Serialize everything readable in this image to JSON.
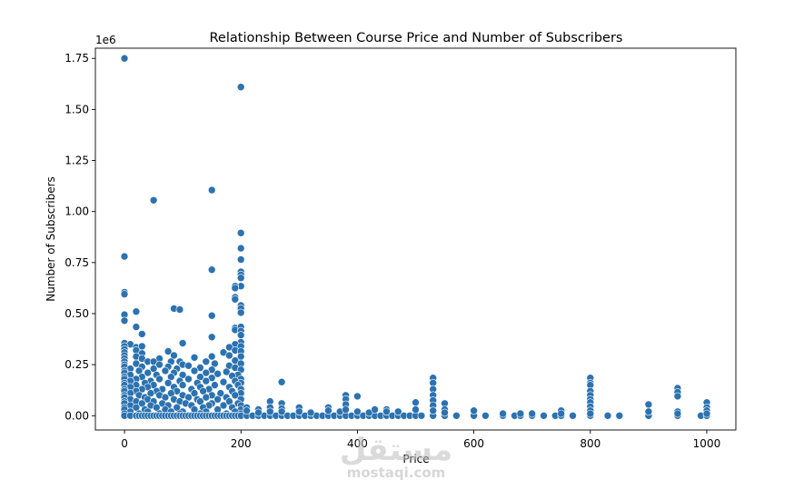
{
  "chart_data": {
    "type": "scatter",
    "title": "Relationship Between Course Price and Number of Subscribers",
    "xlabel": "Price",
    "ylabel": "Number of Subscribers",
    "y_offset_label": "1e6",
    "xlim": [
      -50,
      1050
    ],
    "ylim": [
      -0.07,
      1.8
    ],
    "x_ticks": [
      0,
      200,
      400,
      600,
      800,
      1000
    ],
    "y_ticks": [
      0.0,
      0.25,
      0.5,
      0.75,
      1.0,
      1.25,
      1.5,
      1.75
    ],
    "y_tick_labels": [
      "0.00",
      "0.25",
      "0.50",
      "0.75",
      "1.00",
      "1.25",
      "1.50",
      "1.75"
    ],
    "grid": false,
    "point_color": "#2c72b0",
    "point_edge": "#ffffff",
    "points": [
      [
        0,
        1.75
      ],
      [
        200,
        1.61
      ],
      [
        150,
        1.105
      ],
      [
        50,
        1.055
      ],
      [
        0,
        0.78
      ],
      [
        200,
        0.895
      ],
      [
        200,
        0.82
      ],
      [
        200,
        0.765
      ],
      [
        150,
        0.715
      ],
      [
        200,
        0.705
      ],
      [
        200,
        0.69
      ],
      [
        200,
        0.675
      ],
      [
        200,
        0.635
      ],
      [
        190,
        0.635
      ],
      [
        190,
        0.625
      ],
      [
        0,
        0.605
      ],
      [
        0,
        0.595
      ],
      [
        190,
        0.58
      ],
      [
        190,
        0.57
      ],
      [
        200,
        0.54
      ],
      [
        200,
        0.525
      ],
      [
        200,
        0.505
      ],
      [
        85,
        0.525
      ],
      [
        95,
        0.52
      ],
      [
        20,
        0.51
      ],
      [
        0,
        0.495
      ],
      [
        150,
        0.49
      ],
      [
        0,
        0.465
      ],
      [
        20,
        0.435
      ],
      [
        190,
        0.43
      ],
      [
        190,
        0.42
      ],
      [
        200,
        0.435
      ],
      [
        200,
        0.415
      ],
      [
        200,
        0.395
      ],
      [
        30,
        0.4
      ],
      [
        150,
        0.385
      ],
      [
        200,
        0.36
      ],
      [
        0,
        0.355
      ],
      [
        10,
        0.35
      ],
      [
        100,
        0.355
      ],
      [
        190,
        0.35
      ],
      [
        0,
        0.34
      ],
      [
        20,
        0.335
      ],
      [
        30,
        0.34
      ],
      [
        180,
        0.335
      ],
      [
        200,
        0.34
      ],
      [
        0,
        0.325
      ],
      [
        20,
        0.32
      ],
      [
        75,
        0.315
      ],
      [
        190,
        0.32
      ],
      [
        0,
        0.31
      ],
      [
        30,
        0.305
      ],
      [
        170,
        0.31
      ],
      [
        200,
        0.315
      ],
      [
        0,
        0.295
      ],
      [
        20,
        0.29
      ],
      [
        85,
        0.295
      ],
      [
        150,
        0.29
      ],
      [
        180,
        0.295
      ],
      [
        0,
        0.28
      ],
      [
        30,
        0.28
      ],
      [
        60,
        0.28
      ],
      [
        120,
        0.285
      ],
      [
        200,
        0.29
      ],
      [
        0,
        0.265
      ],
      [
        40,
        0.265
      ],
      [
        50,
        0.265
      ],
      [
        80,
        0.265
      ],
      [
        95,
        0.265
      ],
      [
        140,
        0.265
      ],
      [
        190,
        0.27
      ],
      [
        0,
        0.25
      ],
      [
        20,
        0.255
      ],
      [
        60,
        0.25
      ],
      [
        100,
        0.25
      ],
      [
        155,
        0.255
      ],
      [
        200,
        0.255
      ],
      [
        0,
        0.24
      ],
      [
        30,
        0.24
      ],
      [
        75,
        0.24
      ],
      [
        110,
        0.245
      ],
      [
        180,
        0.245
      ],
      [
        10,
        0.23
      ],
      [
        50,
        0.23
      ],
      [
        90,
        0.23
      ],
      [
        130,
        0.235
      ],
      [
        190,
        0.235
      ],
      [
        0,
        0.22
      ],
      [
        25,
        0.22
      ],
      [
        70,
        0.22
      ],
      [
        120,
        0.22
      ],
      [
        150,
        0.225
      ],
      [
        200,
        0.225
      ],
      [
        0,
        0.21
      ],
      [
        40,
        0.21
      ],
      [
        85,
        0.21
      ],
      [
        140,
        0.21
      ],
      [
        175,
        0.215
      ],
      [
        10,
        0.2
      ],
      [
        55,
        0.2
      ],
      [
        100,
        0.2
      ],
      [
        160,
        0.205
      ],
      [
        195,
        0.2
      ],
      [
        0,
        0.19
      ],
      [
        30,
        0.19
      ],
      [
        80,
        0.19
      ],
      [
        130,
        0.19
      ],
      [
        185,
        0.195
      ],
      [
        0,
        0.18
      ],
      [
        20,
        0.18
      ],
      [
        60,
        0.18
      ],
      [
        110,
        0.18
      ],
      [
        150,
        0.185
      ],
      [
        200,
        0.18
      ],
      [
        10,
        0.17
      ],
      [
        45,
        0.17
      ],
      [
        95,
        0.17
      ],
      [
        140,
        0.17
      ],
      [
        190,
        0.17
      ],
      [
        0,
        0.16
      ],
      [
        35,
        0.16
      ],
      [
        75,
        0.16
      ],
      [
        125,
        0.16
      ],
      [
        170,
        0.165
      ],
      [
        200,
        0.16
      ],
      [
        0,
        0.15
      ],
      [
        20,
        0.15
      ],
      [
        50,
        0.15
      ],
      [
        100,
        0.15
      ],
      [
        155,
        0.15
      ],
      [
        195,
        0.15
      ],
      [
        10,
        0.14
      ],
      [
        40,
        0.14
      ],
      [
        85,
        0.14
      ],
      [
        130,
        0.14
      ],
      [
        180,
        0.14
      ],
      [
        0,
        0.13
      ],
      [
        30,
        0.13
      ],
      [
        65,
        0.13
      ],
      [
        115,
        0.13
      ],
      [
        145,
        0.13
      ],
      [
        200,
        0.13
      ],
      [
        0,
        0.12
      ],
      [
        20,
        0.12
      ],
      [
        55,
        0.12
      ],
      [
        90,
        0.12
      ],
      [
        135,
        0.12
      ],
      [
        185,
        0.12
      ],
      [
        10,
        0.11
      ],
      [
        45,
        0.11
      ],
      [
        80,
        0.11
      ],
      [
        120,
        0.11
      ],
      [
        165,
        0.11
      ],
      [
        200,
        0.11
      ],
      [
        0,
        0.1
      ],
      [
        25,
        0.1
      ],
      [
        60,
        0.1
      ],
      [
        100,
        0.1
      ],
      [
        150,
        0.1
      ],
      [
        190,
        0.1
      ],
      [
        0,
        0.09
      ],
      [
        35,
        0.09
      ],
      [
        70,
        0.09
      ],
      [
        110,
        0.09
      ],
      [
        140,
        0.09
      ],
      [
        175,
        0.09
      ],
      [
        10,
        0.08
      ],
      [
        40,
        0.08
      ],
      [
        85,
        0.08
      ],
      [
        125,
        0.08
      ],
      [
        160,
        0.08
      ],
      [
        200,
        0.08
      ],
      [
        0,
        0.07
      ],
      [
        20,
        0.07
      ],
      [
        50,
        0.07
      ],
      [
        95,
        0.07
      ],
      [
        130,
        0.07
      ],
      [
        180,
        0.07
      ],
      [
        0,
        0.06
      ],
      [
        30,
        0.06
      ],
      [
        65,
        0.06
      ],
      [
        105,
        0.06
      ],
      [
        150,
        0.06
      ],
      [
        195,
        0.06
      ],
      [
        10,
        0.05
      ],
      [
        45,
        0.05
      ],
      [
        75,
        0.05
      ],
      [
        115,
        0.05
      ],
      [
        145,
        0.05
      ],
      [
        170,
        0.05
      ],
      [
        200,
        0.05
      ],
      [
        0,
        0.04
      ],
      [
        20,
        0.04
      ],
      [
        55,
        0.04
      ],
      [
        90,
        0.04
      ],
      [
        135,
        0.04
      ],
      [
        185,
        0.04
      ],
      [
        0,
        0.03
      ],
      [
        35,
        0.03
      ],
      [
        70,
        0.03
      ],
      [
        120,
        0.03
      ],
      [
        160,
        0.03
      ],
      [
        200,
        0.03
      ],
      [
        10,
        0.02
      ],
      [
        40,
        0.02
      ],
      [
        80,
        0.02
      ],
      [
        100,
        0.02
      ],
      [
        140,
        0.02
      ],
      [
        190,
        0.02
      ],
      [
        0,
        0.01
      ],
      [
        25,
        0.01
      ],
      [
        60,
        0.01
      ],
      [
        95,
        0.01
      ],
      [
        130,
        0.01
      ],
      [
        175,
        0.01
      ],
      [
        200,
        0.01
      ],
      [
        0,
        0
      ],
      [
        10,
        0
      ],
      [
        20,
        0
      ],
      [
        25,
        0
      ],
      [
        30,
        0
      ],
      [
        35,
        0
      ],
      [
        40,
        0
      ],
      [
        45,
        0
      ],
      [
        50,
        0
      ],
      [
        55,
        0
      ],
      [
        60,
        0
      ],
      [
        65,
        0
      ],
      [
        70,
        0
      ],
      [
        75,
        0
      ],
      [
        80,
        0
      ],
      [
        85,
        0
      ],
      [
        90,
        0
      ],
      [
        95,
        0
      ],
      [
        100,
        0
      ],
      [
        105,
        0
      ],
      [
        110,
        0
      ],
      [
        115,
        0
      ],
      [
        120,
        0
      ],
      [
        125,
        0
      ],
      [
        130,
        0
      ],
      [
        135,
        0
      ],
      [
        140,
        0
      ],
      [
        145,
        0
      ],
      [
        150,
        0
      ],
      [
        155,
        0
      ],
      [
        160,
        0
      ],
      [
        165,
        0
      ],
      [
        170,
        0
      ],
      [
        175,
        0
      ],
      [
        180,
        0
      ],
      [
        185,
        0
      ],
      [
        190,
        0
      ],
      [
        195,
        0
      ],
      [
        200,
        0
      ],
      [
        210,
        0
      ],
      [
        220,
        0
      ],
      [
        230,
        0
      ],
      [
        240,
        0
      ],
      [
        250,
        0
      ],
      [
        260,
        0
      ],
      [
        270,
        0
      ],
      [
        280,
        0
      ],
      [
        290,
        0
      ],
      [
        300,
        0
      ],
      [
        310,
        0
      ],
      [
        320,
        0
      ],
      [
        330,
        0
      ],
      [
        340,
        0
      ],
      [
        350,
        0
      ],
      [
        360,
        0
      ],
      [
        370,
        0
      ],
      [
        380,
        0
      ],
      [
        390,
        0
      ],
      [
        400,
        0
      ],
      [
        410,
        0
      ],
      [
        420,
        0
      ],
      [
        430,
        0
      ],
      [
        440,
        0
      ],
      [
        450,
        0
      ],
      [
        460,
        0
      ],
      [
        470,
        0
      ],
      [
        480,
        0
      ],
      [
        490,
        0
      ],
      [
        500,
        0
      ],
      [
        510,
        0
      ],
      [
        530,
        0
      ],
      [
        550,
        0
      ],
      [
        570,
        0
      ],
      [
        600,
        0
      ],
      [
        620,
        0
      ],
      [
        650,
        0
      ],
      [
        670,
        0
      ],
      [
        680,
        0
      ],
      [
        700,
        0
      ],
      [
        720,
        0
      ],
      [
        740,
        0
      ],
      [
        750,
        0
      ],
      [
        770,
        0
      ],
      [
        800,
        0
      ],
      [
        830,
        0
      ],
      [
        850,
        0
      ],
      [
        900,
        0
      ],
      [
        950,
        0
      ],
      [
        990,
        0
      ],
      [
        1000,
        0
      ],
      [
        210,
        0.04
      ],
      [
        210,
        0.025
      ],
      [
        230,
        0.03
      ],
      [
        230,
        0.015
      ],
      [
        250,
        0.07
      ],
      [
        250,
        0.04
      ],
      [
        250,
        0.02
      ],
      [
        270,
        0.165
      ],
      [
        270,
        0.06
      ],
      [
        270,
        0.035
      ],
      [
        270,
        0.02
      ],
      [
        300,
        0.04
      ],
      [
        300,
        0.02
      ],
      [
        320,
        0.015
      ],
      [
        350,
        0.04
      ],
      [
        350,
        0.025
      ],
      [
        370,
        0.02
      ],
      [
        380,
        0.1
      ],
      [
        380,
        0.08
      ],
      [
        380,
        0.055
      ],
      [
        380,
        0.03
      ],
      [
        400,
        0.095
      ],
      [
        400,
        0.02
      ],
      [
        420,
        0.015
      ],
      [
        430,
        0.03
      ],
      [
        450,
        0.03
      ],
      [
        450,
        0.02
      ],
      [
        470,
        0.02
      ],
      [
        500,
        0.065
      ],
      [
        500,
        0.03
      ],
      [
        530,
        0.185
      ],
      [
        530,
        0.16
      ],
      [
        530,
        0.13
      ],
      [
        530,
        0.1
      ],
      [
        530,
        0.075
      ],
      [
        530,
        0.05
      ],
      [
        530,
        0.025
      ],
      [
        550,
        0.06
      ],
      [
        550,
        0.03
      ],
      [
        550,
        0.015
      ],
      [
        600,
        0.025
      ],
      [
        650,
        0.01
      ],
      [
        680,
        0.01
      ],
      [
        700,
        0.01
      ],
      [
        750,
        0.025
      ],
      [
        750,
        0.01
      ],
      [
        800,
        0.185
      ],
      [
        800,
        0.16
      ],
      [
        800,
        0.15
      ],
      [
        800,
        0.12
      ],
      [
        800,
        0.1
      ],
      [
        800,
        0.08
      ],
      [
        800,
        0.065
      ],
      [
        800,
        0.045
      ],
      [
        800,
        0.025
      ],
      [
        800,
        0.01
      ],
      [
        900,
        0.055
      ],
      [
        900,
        0.02
      ],
      [
        950,
        0.135
      ],
      [
        950,
        0.115
      ],
      [
        950,
        0.095
      ],
      [
        950,
        0.02
      ],
      [
        950,
        0.01
      ],
      [
        1000,
        0.065
      ],
      [
        1000,
        0.04
      ],
      [
        1000,
        0.025
      ],
      [
        1000,
        0.01
      ]
    ]
  },
  "watermark": {
    "logo_text": "مستقل",
    "url_text": "mostaqi.com"
  }
}
